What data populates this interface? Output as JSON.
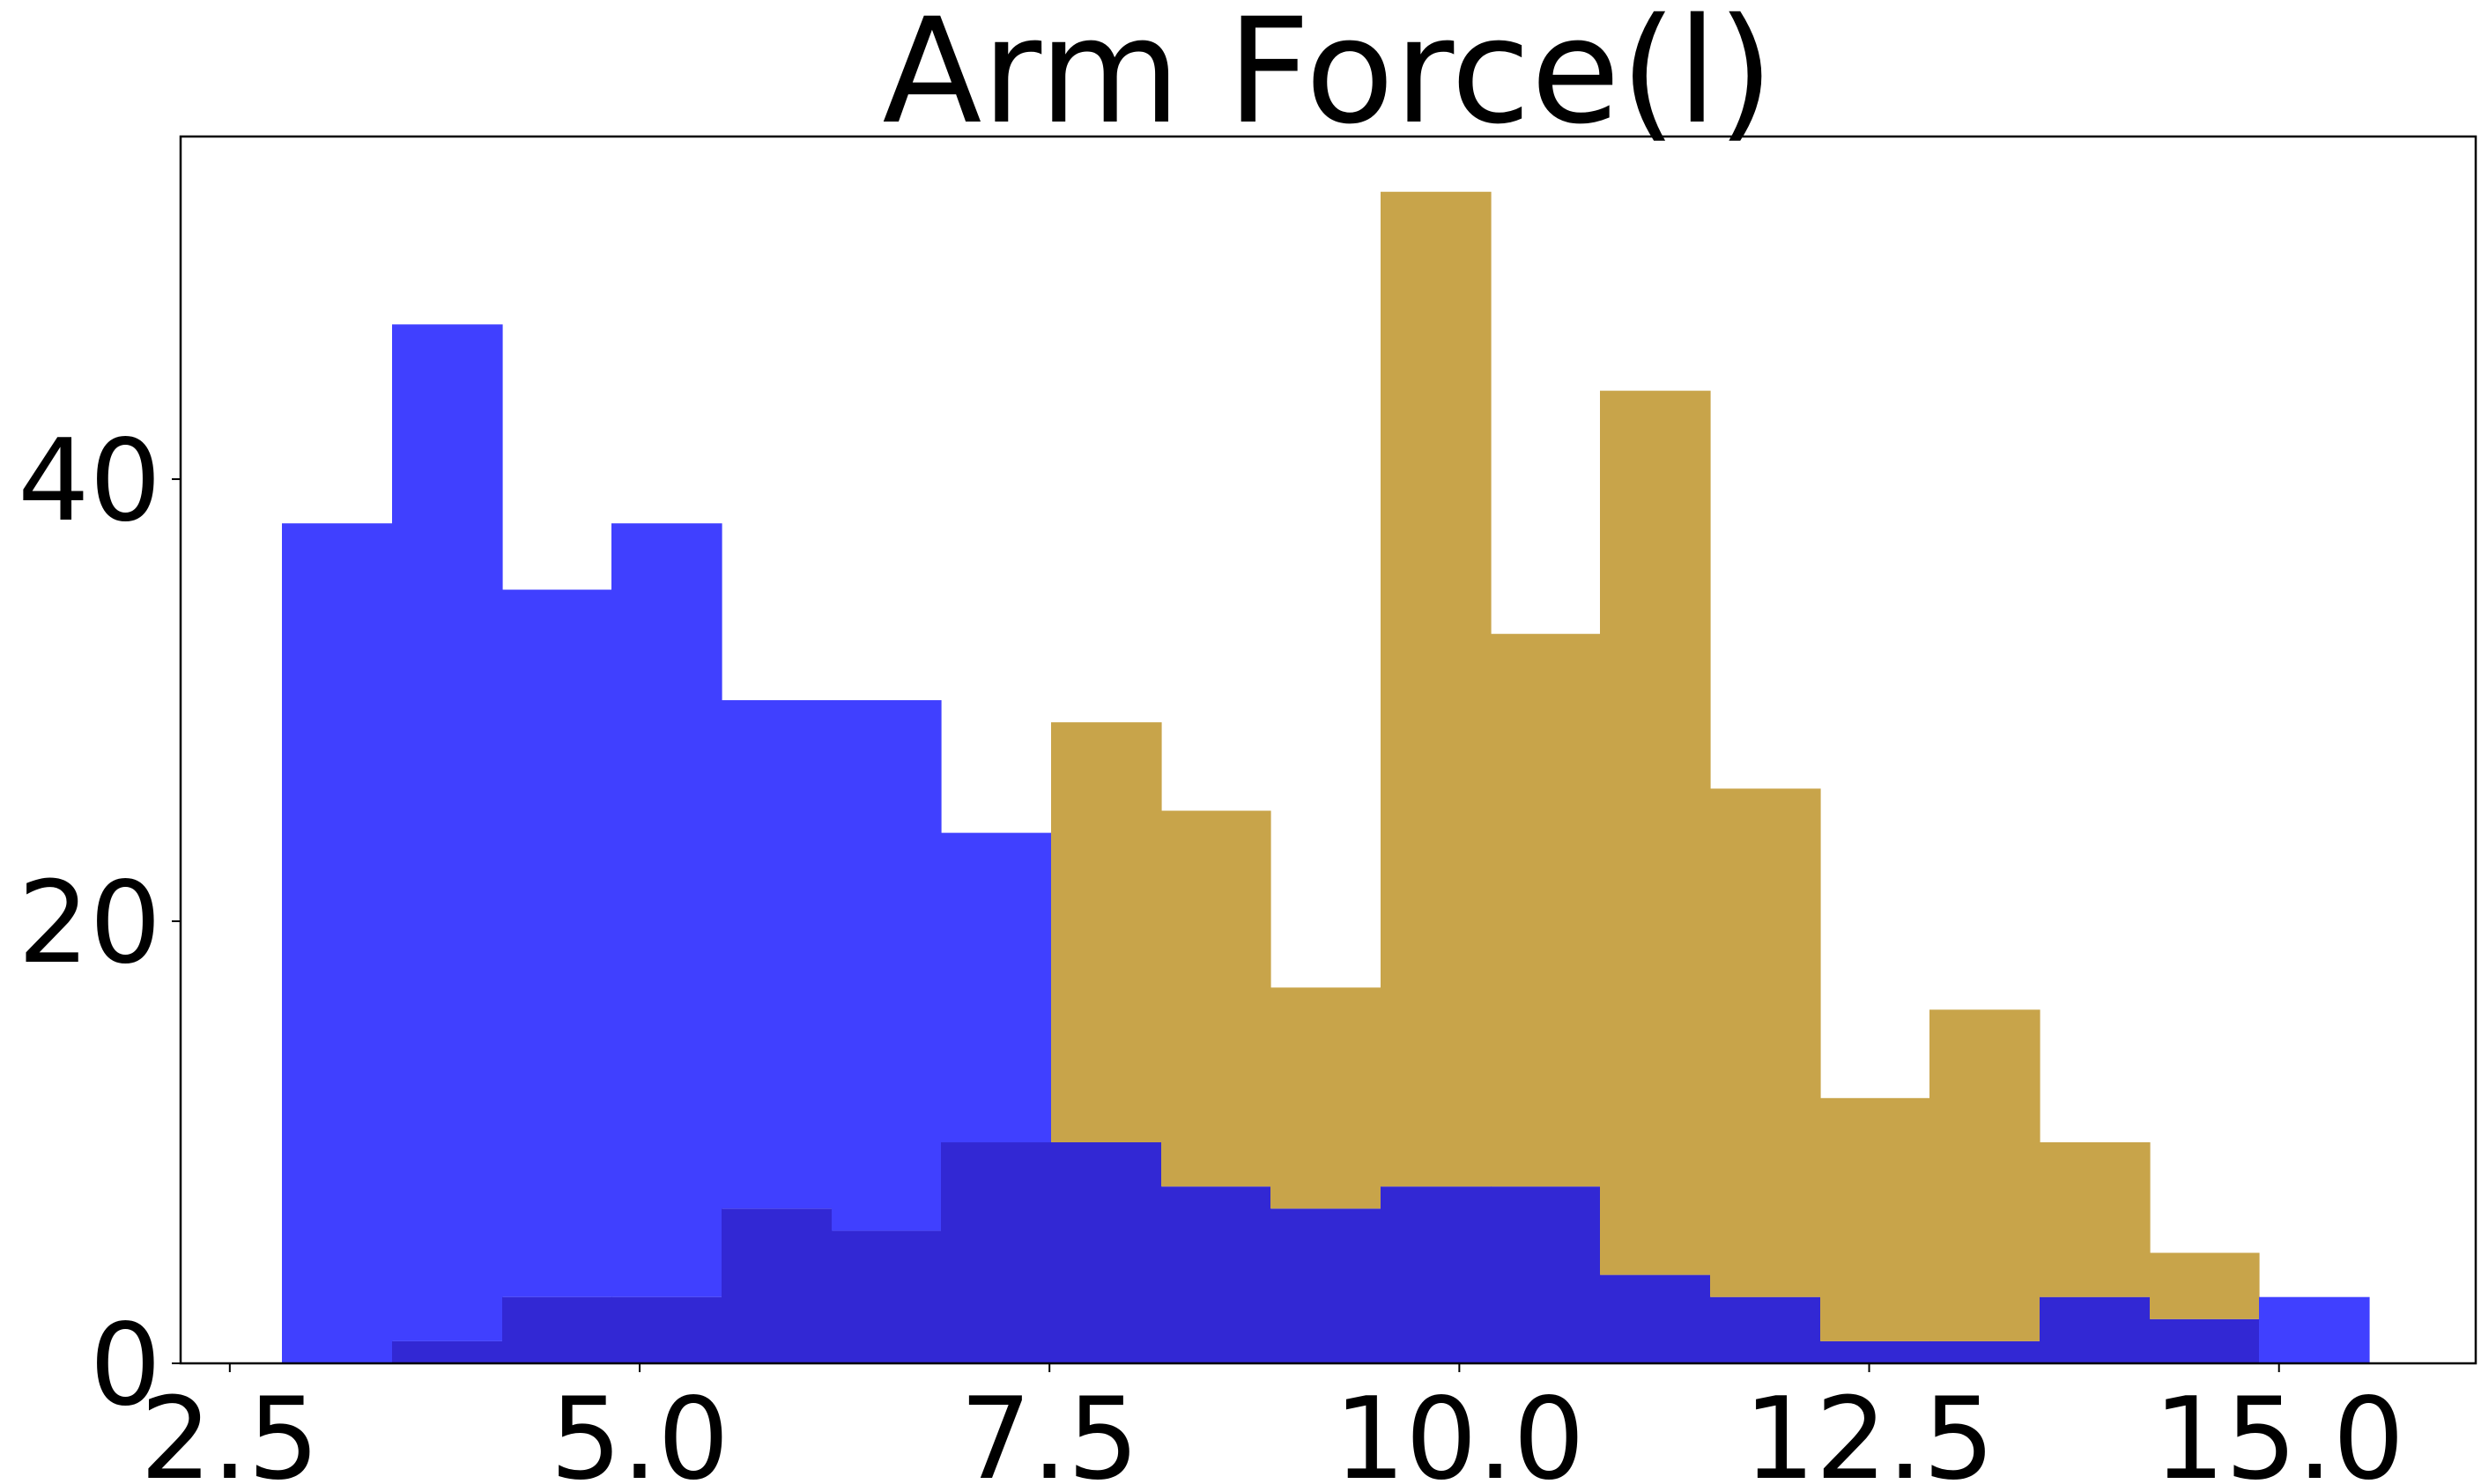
{
  "chart_data": {
    "type": "histogram",
    "title": "Arm Force(l)",
    "xlabel": "",
    "ylabel": "",
    "xlim": [
      2.2,
      16.2
    ],
    "ylim": [
      0,
      55.5
    ],
    "x_ticks": [
      2.5,
      5.0,
      7.5,
      10.0,
      12.5,
      15.0
    ],
    "x_tick_labels": [
      "2.5",
      "5.0",
      "7.5",
      "10.0",
      "12.5",
      "15.0"
    ],
    "y_ticks": [
      0,
      20,
      40
    ],
    "y_tick_labels": [
      "0",
      "20",
      "40"
    ],
    "grid": false,
    "legend": false,
    "bin_edges": [
      2.82,
      3.49,
      4.16,
      4.83,
      5.5,
      6.17,
      6.84,
      7.51,
      8.18,
      8.85,
      9.52,
      10.19,
      10.86,
      11.53,
      12.2,
      12.87,
      13.54,
      14.21,
      14.88,
      15.55
    ],
    "series": [
      {
        "color": "#4040ff",
        "values": [
          38,
          47,
          35,
          38,
          30,
          30,
          24,
          10,
          8,
          7,
          8,
          8,
          4,
          3,
          1,
          1,
          3,
          2,
          3
        ]
      },
      {
        "color": "#c8a44a",
        "values": [
          0,
          1,
          3,
          3,
          7,
          6,
          10,
          29,
          25,
          17,
          53,
          33,
          44,
          26,
          12,
          16,
          10,
          5,
          0
        ]
      }
    ],
    "overlap_color": "#3228d4"
  }
}
